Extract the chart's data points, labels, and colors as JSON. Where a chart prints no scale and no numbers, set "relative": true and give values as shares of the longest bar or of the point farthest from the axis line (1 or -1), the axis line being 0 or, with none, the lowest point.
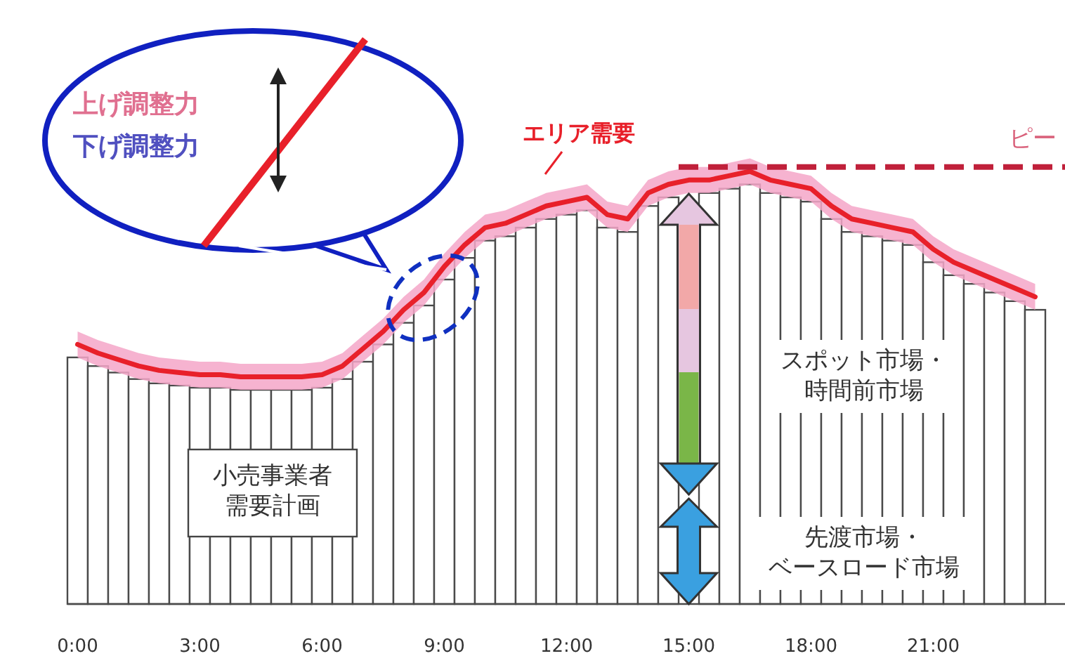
{
  "chart_data": {
    "type": "bar",
    "relative": true,
    "tick_labels": "x",
    "categories": [
      "0:00",
      null,
      null,
      null,
      null,
      null,
      "3:00",
      null,
      null,
      null,
      null,
      null,
      "6:00",
      null,
      null,
      null,
      null,
      null,
      "9:00",
      null,
      null,
      null,
      null,
      null,
      "12:00",
      null,
      null,
      null,
      null,
      null,
      "15:00",
      null,
      null,
      null,
      null,
      null,
      "18:00",
      null,
      null,
      null,
      null,
      null,
      "21:00",
      null,
      null,
      null,
      null,
      null
    ],
    "series": [
      {
        "name": "小売事業者需要計画",
        "color": "#ffffff",
        "values": [
          0.57,
          0.55,
          0.535,
          0.52,
          0.51,
          0.505,
          0.5,
          0.5,
          0.495,
          0.495,
          0.495,
          0.495,
          0.5,
          0.52,
          0.56,
          0.6,
          0.65,
          0.69,
          0.75,
          0.8,
          0.84,
          0.85,
          0.87,
          0.89,
          0.9,
          0.91,
          0.87,
          0.86,
          0.92,
          0.94,
          null,
          0.95,
          0.96,
          0.97,
          0.95,
          0.94,
          0.93,
          0.89,
          0.86,
          0.85,
          0.84,
          0.83,
          0.79,
          0.76,
          0.74,
          0.72,
          0.7,
          0.68
        ]
      },
      {
        "name": "エリア需要",
        "type": "line",
        "color": "#e8202a",
        "values": [
          0.6,
          0.58,
          0.565,
          0.55,
          0.54,
          0.535,
          0.53,
          0.53,
          0.525,
          0.525,
          0.525,
          0.525,
          0.53,
          0.55,
          0.59,
          0.63,
          0.68,
          0.72,
          0.78,
          0.83,
          0.87,
          0.88,
          0.9,
          0.92,
          0.93,
          0.94,
          0.9,
          0.89,
          0.95,
          0.97,
          0.98,
          0.98,
          0.99,
          1.0,
          0.98,
          0.97,
          0.96,
          0.92,
          0.89,
          0.88,
          0.87,
          0.86,
          0.82,
          0.79,
          0.77,
          0.75,
          0.73,
          0.71
        ],
        "lower": [
          0.57,
          0.55,
          0.535,
          0.52,
          0.51,
          0.505,
          0.5,
          0.5,
          0.495,
          0.495,
          0.495,
          0.495,
          0.5,
          0.52,
          0.56,
          0.6,
          0.65,
          0.69,
          0.75,
          0.8,
          0.84,
          0.85,
          0.87,
          0.89,
          0.9,
          0.91,
          0.87,
          0.86,
          0.92,
          0.94,
          0.95,
          0.95,
          0.96,
          0.97,
          0.95,
          0.94,
          0.93,
          0.89,
          0.86,
          0.85,
          0.84,
          0.83,
          0.79,
          0.76,
          0.74,
          0.72,
          0.7,
          0.68
        ],
        "upper": [
          0.63,
          0.61,
          0.595,
          0.58,
          0.57,
          0.565,
          0.56,
          0.56,
          0.555,
          0.555,
          0.555,
          0.555,
          0.56,
          0.58,
          0.62,
          0.66,
          0.71,
          0.75,
          0.81,
          0.86,
          0.9,
          0.91,
          0.93,
          0.95,
          0.96,
          0.97,
          0.93,
          0.92,
          0.98,
          1.0,
          1.01,
          1.01,
          1.02,
          1.03,
          1.01,
          1.0,
          0.99,
          0.95,
          0.92,
          0.91,
          0.9,
          0.89,
          0.85,
          0.82,
          0.8,
          0.78,
          0.76,
          0.74
        ]
      }
    ],
    "ref_lines": [
      {
        "axis": "y",
        "value": 1.01,
        "label": "ピー",
        "color": "#c0203a",
        "line_style": "dashed"
      }
    ],
    "annotations": [
      "上げ調整力",
      "下げ調整力",
      "スポット市場・時間前市場",
      "先渡市場・ベースロード市場"
    ]
  }
}
